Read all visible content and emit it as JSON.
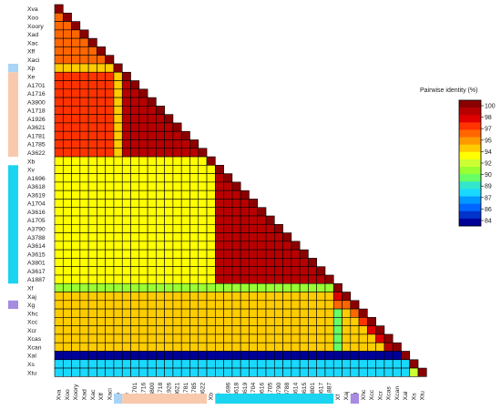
{
  "chart_data": {
    "type": "heatmap",
    "subtype": "lower-triangular pairwise identity matrix",
    "labels": [
      "Xva",
      "Xoo",
      "Xoory",
      "Xad",
      "Xac",
      "Xff",
      "Xaci",
      "Xp",
      "Xe",
      "A1701",
      "A1716",
      "A3800",
      "A1718",
      "A1926",
      "A3621",
      "A1781",
      "A1785",
      "A3622",
      "Xb",
      "Xv",
      "A1696",
      "A3618",
      "A3619",
      "A1704",
      "A3616",
      "A1705",
      "A3790",
      "A3788",
      "A3614",
      "A3615",
      "A3801",
      "A3617",
      "A1887",
      "Xf",
      "Xaj",
      "Xg",
      "Xhc",
      "Xcc",
      "Xcr",
      "Xcas",
      "Xcan",
      "Xal",
      "Xs",
      "Xtu"
    ],
    "groups": [
      {
        "start": 0,
        "end": 6,
        "value": 96
      },
      {
        "start": 7,
        "end": 7,
        "value": 94
      },
      {
        "start": 8,
        "end": 17,
        "value": 99
      },
      {
        "start": 18,
        "end": 18,
        "value": 93
      },
      {
        "start": 19,
        "end": 32,
        "value": 98.5
      },
      {
        "start": 33,
        "end": 33,
        "value": 91
      },
      {
        "start": 34,
        "end": 34,
        "value": 94
      },
      {
        "start": 35,
        "end": 35,
        "value": 94
      },
      {
        "start": 36,
        "end": 36,
        "value": 94
      },
      {
        "start": 37,
        "end": 37,
        "value": 94
      },
      {
        "start": 38,
        "end": 38,
        "value": 94
      },
      {
        "start": 39,
        "end": 39,
        "value": 94
      },
      {
        "start": 40,
        "end": 40,
        "value": 94
      },
      {
        "start": 41,
        "end": 41,
        "value": 94
      },
      {
        "start": 42,
        "end": 42,
        "value": 94
      },
      {
        "start": 43,
        "end": 43,
        "value": 94
      }
    ],
    "between_group_identity": [
      {
        "rows": [
          8,
          17
        ],
        "cols": [
          0,
          6
        ],
        "value": 97
      },
      {
        "rows": [
          7,
          7
        ],
        "cols": [
          0,
          6
        ],
        "value": 94
      },
      {
        "rows": [
          8,
          17
        ],
        "cols": [
          7,
          7
        ],
        "value": 94
      },
      {
        "rows": [
          18,
          32
        ],
        "cols": [
          0,
          18
        ],
        "value": 92.5
      },
      {
        "rows": [
          19,
          32
        ],
        "cols": [
          18,
          18
        ],
        "value": 92.5
      },
      {
        "rows": [
          33,
          33
        ],
        "cols": [
          0,
          32
        ],
        "value": 91
      },
      {
        "rows": [
          34,
          40
        ],
        "cols": [
          0,
          33
        ],
        "value": 94
      },
      {
        "rows": [
          34,
          40
        ],
        "cols": [
          33,
          33
        ],
        "value": 90
      },
      {
        "rows": [
          34,
          40
        ],
        "cols": [
          34,
          40
        ],
        "value": 94
      },
      {
        "rows": [
          41,
          41
        ],
        "cols": [
          0,
          40
        ],
        "value": 84
      },
      {
        "rows": [
          42,
          43
        ],
        "cols": [
          0,
          41
        ],
        "value": 88
      },
      {
        "rows": [
          42,
          43
        ],
        "cols": [
          42,
          43
        ],
        "value": 92
      }
    ],
    "cell_overrides": [
      {
        "row": 34,
        "col": 33,
        "value": 98
      },
      {
        "row": 35,
        "col": 34,
        "value": 96
      },
      {
        "row": 35,
        "col": 33,
        "value": 96
      },
      {
        "row": 36,
        "col": 35,
        "value": 96
      },
      {
        "row": 37,
        "col": 36,
        "value": 97
      },
      {
        "row": 38,
        "col": 37,
        "value": 98
      },
      {
        "row": 39,
        "col": 38,
        "value": 98
      },
      {
        "row": 40,
        "col": 39,
        "value": 99
      }
    ],
    "colorbar": {
      "title": "Pairwise identity (%)",
      "ticks": [
        100,
        98,
        97,
        95,
        94,
        92,
        90,
        89,
        87,
        86,
        84
      ],
      "min": 83,
      "max": 100.5,
      "colors": [
        "#8b0000",
        "#b80000",
        "#e00000",
        "#ff3300",
        "#ff6600",
        "#ff9900",
        "#ffcc00",
        "#ffff00",
        "#ccff33",
        "#99ff33",
        "#66ff66",
        "#33e6cc",
        "#1ad9ff",
        "#0099ff",
        "#0066ff",
        "#0033cc",
        "#000099"
      ]
    },
    "clade_bars": [
      {
        "start": 7,
        "end": 7,
        "color": "#a9d4f7"
      },
      {
        "start": 8,
        "end": 17,
        "color": "#f9c9ad"
      },
      {
        "start": 19,
        "end": 32,
        "color": "#1ad4f0"
      },
      {
        "start": 35,
        "end": 35,
        "color": "#a78be0"
      }
    ]
  }
}
